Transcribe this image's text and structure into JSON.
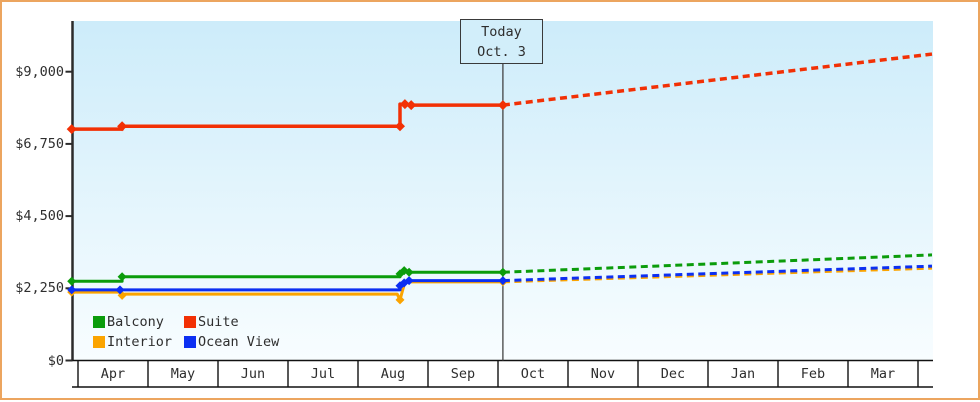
{
  "frame": {
    "border_color": "#eca55f",
    "background": "#ffffff"
  },
  "today": {
    "line1": "Today",
    "line2": "Oct. 3",
    "x_months_from_apr": 6.07
  },
  "y_axis": {
    "tick_labels": [
      "$9,000",
      "$6,750",
      "$4,500",
      "$2,250",
      "$0"
    ],
    "tick_values": [
      9000,
      6750,
      4500,
      2250,
      0
    ]
  },
  "x_axis": {
    "month_labels": [
      "Apr",
      "May",
      "Jun",
      "Jul",
      "Aug",
      "Sep",
      "Oct",
      "Nov",
      "Dec",
      "Jan",
      "Feb",
      "Mar"
    ]
  },
  "legend": {
    "items": [
      {
        "label": "Balcony",
        "color": "#0b9c0b"
      },
      {
        "label": "Suite",
        "color": "#f23005"
      },
      {
        "label": "Interior",
        "color": "#fba400"
      },
      {
        "label": "Ocean View",
        "color": "#0c2ff2"
      }
    ]
  },
  "chart_data": {
    "type": "line",
    "title": "",
    "description": "Cruise cabin price history in USD; solid = observed prices with diamond markers at changes, dashed = projected prices after today (Oct. 3)",
    "x_unit": "months since Apr 1 (0 = Apr 1, 6.07 = Oct 3 today, 12.2 = right edge)",
    "today_x": 6.07,
    "x_range": [
      -0.09,
      12.2
    ],
    "y_range": [
      0,
      10550
    ],
    "grid": false,
    "legend_position": "bottom-left inside plot",
    "series": [
      {
        "name": "Interior",
        "color": "#fba400",
        "stroke_width": 3,
        "solid": [
          [
            -0.09,
            2130
          ],
          [
            0.6,
            2130
          ],
          [
            0.63,
            2030
          ],
          [
            0.67,
            2070
          ],
          [
            4.56,
            2070
          ],
          [
            4.6,
            1890
          ],
          [
            4.67,
            2450
          ],
          [
            6.07,
            2450
          ]
        ],
        "markers": [
          [
            -0.09,
            2130
          ],
          [
            0.63,
            2030
          ],
          [
            4.6,
            1890
          ],
          [
            6.07,
            2450
          ]
        ],
        "projection": [
          [
            6.07,
            2450
          ],
          [
            12.2,
            2880
          ]
        ]
      },
      {
        "name": "Ocean View",
        "color": "#0c2ff2",
        "stroke_width": 3,
        "solid": [
          [
            -0.09,
            2200
          ],
          [
            0.6,
            2200
          ],
          [
            4.6,
            2200
          ],
          [
            4.6,
            2330
          ],
          [
            4.66,
            2420
          ],
          [
            4.73,
            2490
          ],
          [
            6.07,
            2490
          ]
        ],
        "markers": [
          [
            -0.09,
            2200
          ],
          [
            0.6,
            2200
          ],
          [
            4.6,
            2330
          ],
          [
            4.66,
            2420
          ],
          [
            4.73,
            2490
          ],
          [
            6.07,
            2490
          ]
        ],
        "projection": [
          [
            6.07,
            2490
          ],
          [
            12.2,
            2940
          ]
        ]
      },
      {
        "name": "Balcony",
        "color": "#0b9c0b",
        "stroke_width": 3,
        "solid": [
          [
            -0.09,
            2470
          ],
          [
            0.63,
            2470
          ],
          [
            0.63,
            2610
          ],
          [
            4.6,
            2610
          ],
          [
            4.6,
            2700
          ],
          [
            4.66,
            2800
          ],
          [
            4.73,
            2750
          ],
          [
            6.07,
            2750
          ]
        ],
        "markers": [
          [
            -0.09,
            2470
          ],
          [
            0.63,
            2610
          ],
          [
            4.6,
            2700
          ],
          [
            4.66,
            2800
          ],
          [
            4.73,
            2750
          ],
          [
            6.07,
            2750
          ]
        ],
        "projection": [
          [
            6.07,
            2750
          ],
          [
            12.2,
            3290
          ]
        ]
      },
      {
        "name": "Suite",
        "color": "#f23005",
        "stroke_width": 3.5,
        "solid": [
          [
            -0.09,
            7210
          ],
          [
            0.63,
            7210
          ],
          [
            0.63,
            7300
          ],
          [
            4.6,
            7300
          ],
          [
            4.6,
            7990
          ],
          [
            4.76,
            7960
          ],
          [
            6.07,
            7960
          ]
        ],
        "markers": [
          [
            -0.09,
            7210
          ],
          [
            0.63,
            7300
          ],
          [
            4.6,
            7300
          ],
          [
            4.67,
            7990
          ],
          [
            4.76,
            7960
          ],
          [
            6.07,
            7960
          ]
        ],
        "projection": [
          [
            6.07,
            7960
          ],
          [
            12.2,
            9550
          ]
        ]
      }
    ]
  }
}
